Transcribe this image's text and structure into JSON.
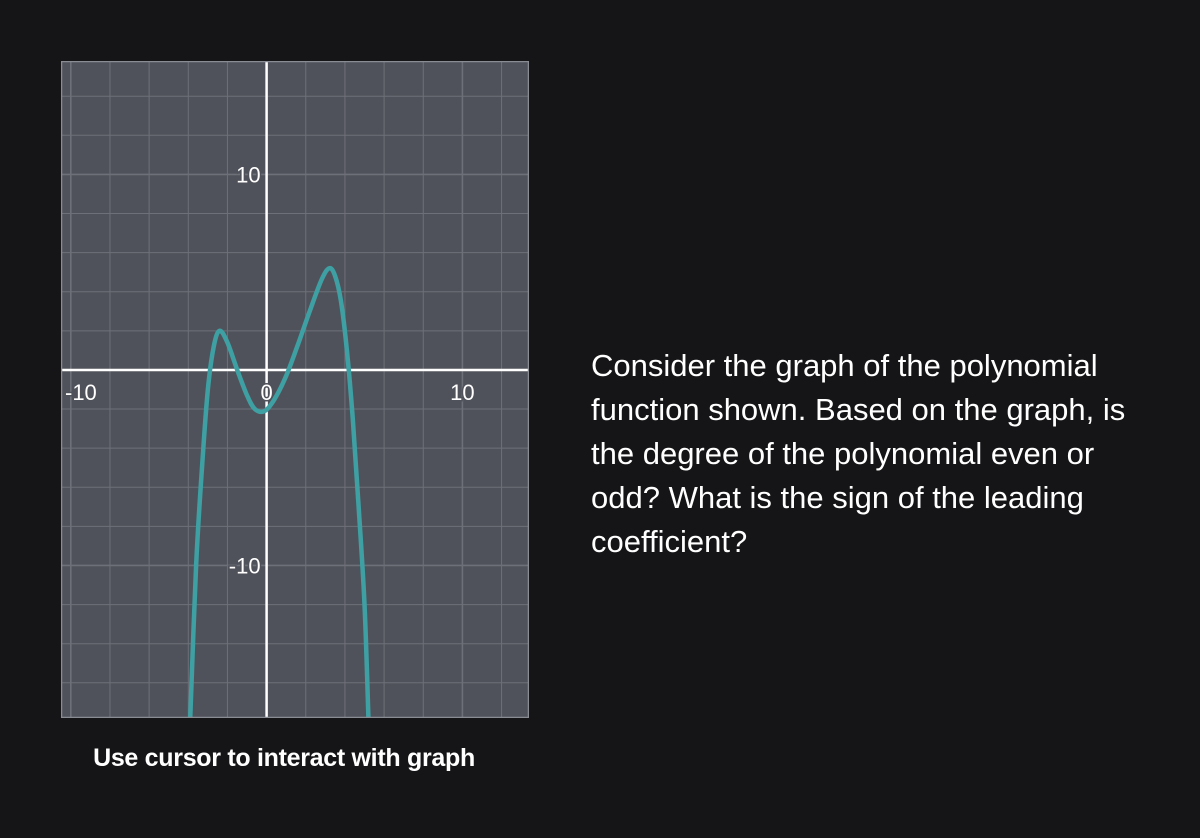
{
  "question": {
    "text": "Consider the graph of the polynomial function shown. Based on the graph, is the degree of the polynomial even or odd? What is the sign of the leading coefficient?"
  },
  "caption": "Use cursor to interact with graph",
  "colors": {
    "background": "#151517",
    "plot_background": "#50525b",
    "grid": "#6e7079",
    "axis": "#ffffff",
    "curve": "#3ea0a3",
    "text": "#ffffff"
  },
  "chart_data": {
    "type": "line",
    "title": "",
    "xlabel": "",
    "ylabel": "",
    "xlim": [
      -10.5,
      13.4
    ],
    "ylim": [
      -17.8,
      15.8
    ],
    "grid": true,
    "grid_step": 2,
    "x_ticks": [
      {
        "value": -10,
        "label": "-10"
      },
      {
        "value": 0,
        "label": "0"
      },
      {
        "value": 10,
        "label": "10"
      }
    ],
    "y_ticks": [
      {
        "value": 10,
        "label": "10"
      },
      {
        "value": -10,
        "label": "-10"
      }
    ],
    "series": [
      {
        "points": [
          [
            -3.9,
            -17.8
          ],
          [
            -3.6,
            -10
          ],
          [
            -3.3,
            -5
          ],
          [
            -3.0,
            -1
          ],
          [
            -2.7,
            1.2
          ],
          [
            -2.4,
            2.0
          ],
          [
            -2.0,
            1.4
          ],
          [
            -1.5,
            0
          ],
          [
            -1.0,
            -1.3
          ],
          [
            -0.6,
            -2.0
          ],
          [
            -0.1,
            -2.1
          ],
          [
            0.4,
            -1.5
          ],
          [
            1.0,
            -0.3
          ],
          [
            1.6,
            1.3
          ],
          [
            2.2,
            3.0
          ],
          [
            2.8,
            4.6
          ],
          [
            3.2,
            5.2
          ],
          [
            3.5,
            4.8
          ],
          [
            3.8,
            3.5
          ],
          [
            4.1,
            1.0
          ],
          [
            4.4,
            -2.5
          ],
          [
            4.7,
            -7.0
          ],
          [
            5.0,
            -12.0
          ],
          [
            5.2,
            -17.8
          ]
        ]
      }
    ]
  }
}
